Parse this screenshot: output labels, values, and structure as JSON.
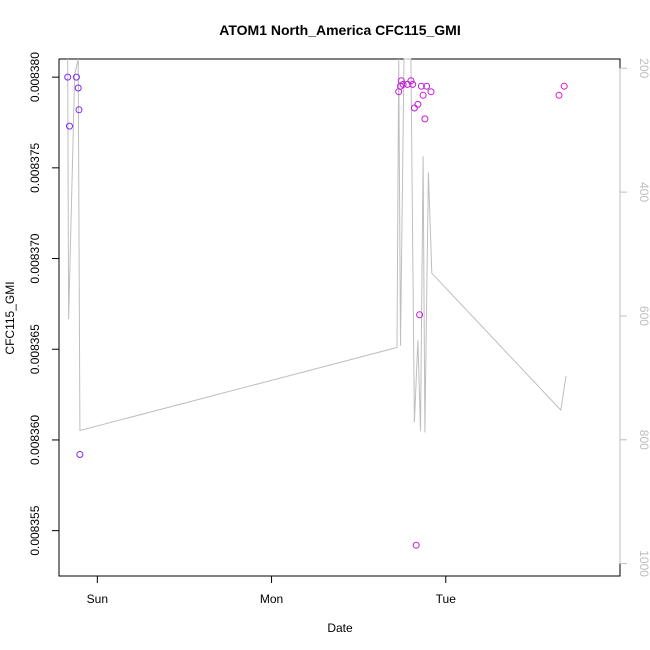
{
  "chart_data": {
    "type": "scatter",
    "title": "ATOM1 North_America CFC115_GMI",
    "xlabel": "Date",
    "ylabel": "CFC115_GMI",
    "x_ticks": [
      "Sun",
      "Mon",
      "Tue"
    ],
    "y_ticks": [
      "0.008355",
      "0.008360",
      "0.008365",
      "0.008370",
      "0.008375",
      "0.008380"
    ],
    "ylim": [
      0.0083525,
      0.008381
    ],
    "right_axis": {
      "ticks": [
        "200",
        "400",
        "600",
        "800",
        "1000"
      ],
      "ylim": [
        1020,
        185
      ],
      "color": "#bebebe"
    },
    "x_unit": "days since Sat 00:00",
    "xlim": [
      0.78,
      4.0
    ],
    "grid": false,
    "point_color_start": "#7b2cf0",
    "point_color_end": "#ee11cc",
    "line_color": "#bebebe",
    "points": [
      {
        "x": 0.83,
        "y": 0.00838
      },
      {
        "x": 0.84,
        "y": 0.0083773
      },
      {
        "x": 0.88,
        "y": 0.00838
      },
      {
        "x": 0.89,
        "y": 0.0083794
      },
      {
        "x": 0.895,
        "y": 0.0083782
      },
      {
        "x": 0.9,
        "y": 0.0083592
      },
      {
        "x": 2.73,
        "y": 0.0083792
      },
      {
        "x": 2.74,
        "y": 0.0083795
      },
      {
        "x": 2.745,
        "y": 0.0083798
      },
      {
        "x": 2.755,
        "y": 0.0083796
      },
      {
        "x": 2.78,
        "y": 0.0083796
      },
      {
        "x": 2.8,
        "y": 0.0083798
      },
      {
        "x": 2.81,
        "y": 0.0083796
      },
      {
        "x": 2.82,
        "y": 0.0083783
      },
      {
        "x": 2.83,
        "y": 0.0083542
      },
      {
        "x": 2.84,
        "y": 0.0083785
      },
      {
        "x": 2.86,
        "y": 0.0083795
      },
      {
        "x": 2.87,
        "y": 0.008379
      },
      {
        "x": 2.88,
        "y": 0.0083777
      },
      {
        "x": 2.89,
        "y": 0.0083795
      },
      {
        "x": 2.915,
        "y": 0.0083792
      },
      {
        "x": 2.85,
        "y": 0.0083669
      },
      {
        "x": 3.65,
        "y": 0.008379
      },
      {
        "x": 3.68,
        "y": 0.0083795
      }
    ],
    "pressure_line": [
      [
        0.83,
        185
      ],
      [
        0.835,
        605
      ],
      [
        0.87,
        210
      ],
      [
        0.89,
        185
      ],
      [
        0.9,
        785
      ],
      [
        2.72,
        651
      ],
      [
        2.73,
        185
      ],
      [
        2.74,
        648
      ],
      [
        2.76,
        185
      ],
      [
        2.8,
        185
      ],
      [
        2.82,
        772
      ],
      [
        2.84,
        639
      ],
      [
        2.855,
        786
      ],
      [
        2.87,
        342
      ],
      [
        2.88,
        788
      ],
      [
        2.9,
        368
      ],
      [
        2.92,
        531
      ],
      [
        3.66,
        752
      ],
      [
        3.69,
        697
      ]
    ]
  }
}
